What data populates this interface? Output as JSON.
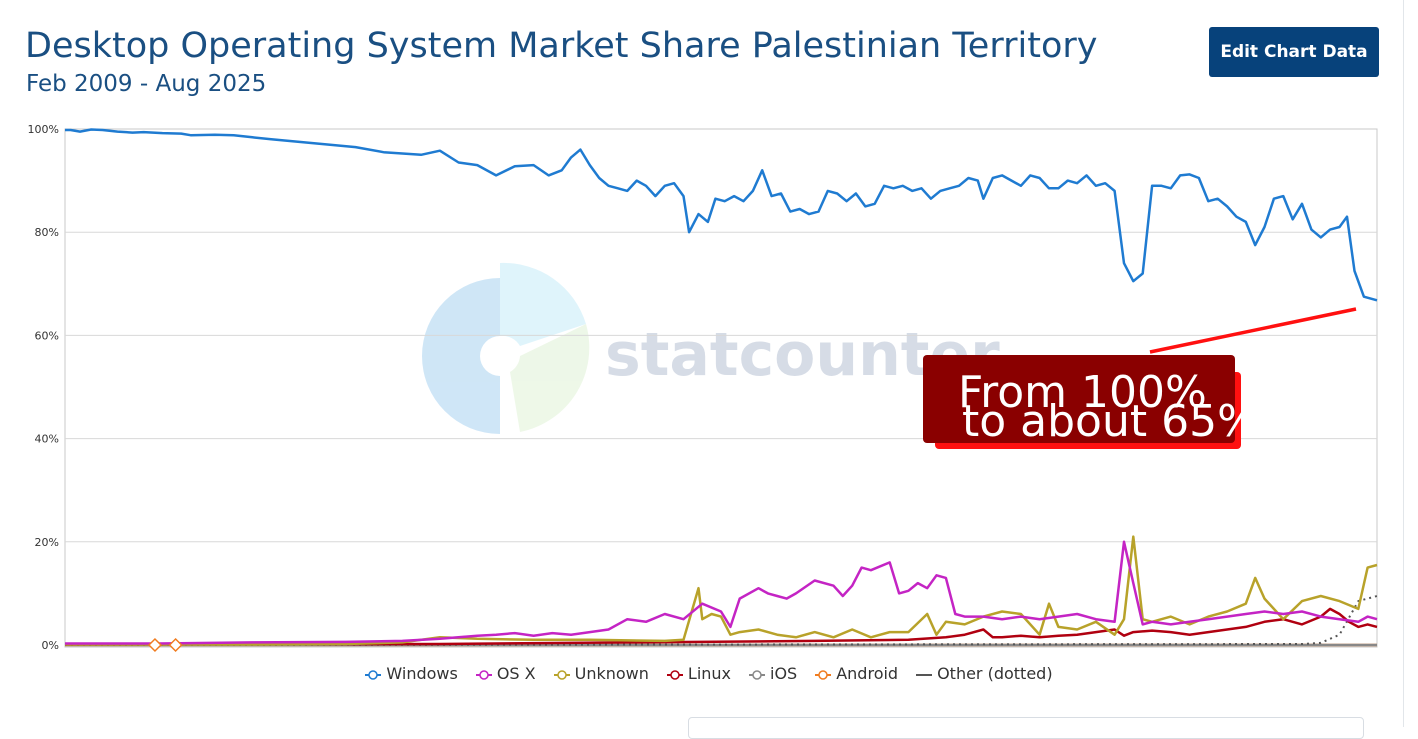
{
  "header": {
    "title": "Desktop Operating System Market Share Palestinian Territory",
    "subtitle": "Feb 2009 - Aug 2025",
    "edit_button_label": "Edit Chart Data"
  },
  "watermark": {
    "text": "statcounter"
  },
  "annotation": {
    "line1": "From 100%",
    "line2": "to about 65%"
  },
  "legend": [
    {
      "name": "Windows",
      "color": "#1f7bd1",
      "marker": "circle"
    },
    {
      "name": "OS X",
      "color": "#c424c4",
      "marker": "circle"
    },
    {
      "name": "Unknown",
      "color": "#b8a22a",
      "marker": "circle"
    },
    {
      "name": "Linux",
      "color": "#b00010",
      "marker": "circle"
    },
    {
      "name": "iOS",
      "color": "#888888",
      "marker": "circle"
    },
    {
      "name": "Android",
      "color": "#f07c20",
      "marker": "circle"
    },
    {
      "name": "Other (dotted)",
      "color": "#555555",
      "marker": "line"
    }
  ],
  "chart_data": {
    "type": "line",
    "title": "Desktop Operating System Market Share Palestinian Territory",
    "subtitle": "Feb 2009 - Aug 2025",
    "x_range": [
      "2009-02",
      "2025-08"
    ],
    "y_ticks": [
      "0%",
      "20%",
      "40%",
      "60%",
      "80%",
      "100%"
    ],
    "ylim": [
      0,
      100
    ],
    "grid": true,
    "legend_position": "bottom",
    "series": [
      {
        "name": "Windows",
        "color": "#1f7bd1",
        "points": [
          [
            0,
            99.8
          ],
          [
            0.3,
            99.8
          ],
          [
            0.8,
            99.5
          ],
          [
            1.4,
            99.9
          ],
          [
            2.0,
            99.8
          ],
          [
            2.8,
            99.5
          ],
          [
            3.6,
            99.3
          ],
          [
            4.2,
            99.4
          ],
          [
            5.2,
            99.2
          ],
          [
            6.2,
            99.1
          ],
          [
            6.7,
            98.8
          ],
          [
            8.0,
            98.9
          ],
          [
            9.0,
            98.8
          ],
          [
            10.0,
            98.4
          ],
          [
            11.0,
            98.0
          ],
          [
            12.5,
            97.5
          ],
          [
            14.0,
            97.0
          ],
          [
            15.5,
            96.5
          ],
          [
            17.0,
            95.5
          ],
          [
            19.0,
            95.0
          ],
          [
            20.0,
            95.8
          ],
          [
            21.0,
            93.5
          ],
          [
            22.0,
            93.0
          ],
          [
            23.0,
            91.0
          ],
          [
            24.0,
            92.8
          ],
          [
            25.0,
            93.0
          ],
          [
            25.8,
            91.0
          ],
          [
            26.5,
            92.0
          ],
          [
            27.0,
            94.5
          ],
          [
            27.5,
            96.0
          ],
          [
            28.0,
            93.0
          ],
          [
            28.5,
            90.5
          ],
          [
            29.0,
            89.0
          ],
          [
            29.5,
            88.5
          ],
          [
            30.0,
            88.0
          ],
          [
            30.5,
            90.0
          ],
          [
            31.0,
            89.0
          ],
          [
            31.5,
            87.0
          ],
          [
            32.0,
            89.0
          ],
          [
            32.5,
            89.5
          ],
          [
            33.0,
            87.0
          ],
          [
            33.3,
            80.0
          ],
          [
            33.8,
            83.5
          ],
          [
            34.3,
            82.0
          ],
          [
            34.7,
            86.5
          ],
          [
            35.2,
            86.0
          ],
          [
            35.7,
            87.0
          ],
          [
            36.2,
            86.0
          ],
          [
            36.7,
            88.0
          ],
          [
            37.2,
            92.0
          ],
          [
            37.7,
            87.0
          ],
          [
            38.2,
            87.5
          ],
          [
            38.7,
            84.0
          ],
          [
            39.2,
            84.5
          ],
          [
            39.7,
            83.5
          ],
          [
            40.2,
            84.0
          ],
          [
            40.7,
            88.0
          ],
          [
            41.2,
            87.5
          ],
          [
            41.7,
            86.0
          ],
          [
            42.2,
            87.5
          ],
          [
            42.7,
            85.0
          ],
          [
            43.2,
            85.5
          ],
          [
            43.7,
            89.0
          ],
          [
            44.2,
            88.5
          ],
          [
            44.7,
            89.0
          ],
          [
            45.2,
            88.0
          ],
          [
            45.7,
            88.5
          ],
          [
            46.2,
            86.5
          ],
          [
            46.7,
            88.0
          ],
          [
            47.2,
            88.5
          ],
          [
            47.7,
            89.0
          ],
          [
            48.2,
            90.5
          ],
          [
            48.7,
            90.0
          ],
          [
            49.0,
            86.5
          ],
          [
            49.5,
            90.5
          ],
          [
            50.0,
            91.0
          ],
          [
            50.5,
            90.0
          ],
          [
            51.0,
            89.0
          ],
          [
            51.5,
            91.0
          ],
          [
            52.0,
            90.5
          ],
          [
            52.5,
            88.5
          ],
          [
            53.0,
            88.5
          ],
          [
            53.5,
            90.0
          ],
          [
            54.0,
            89.5
          ],
          [
            54.5,
            91.0
          ],
          [
            55.0,
            89.0
          ],
          [
            55.5,
            89.5
          ],
          [
            56.0,
            88.0
          ],
          [
            56.5,
            74.0
          ],
          [
            57.0,
            70.5
          ],
          [
            57.5,
            72.0
          ],
          [
            58.0,
            89.0
          ],
          [
            58.5,
            89.0
          ],
          [
            59.0,
            88.5
          ],
          [
            59.5,
            91.0
          ],
          [
            60.0,
            91.2
          ],
          [
            60.5,
            90.5
          ],
          [
            61.0,
            86.0
          ],
          [
            61.5,
            86.5
          ],
          [
            62.0,
            85.0
          ],
          [
            62.5,
            83.0
          ],
          [
            63.0,
            82.0
          ],
          [
            63.5,
            77.5
          ],
          [
            64.0,
            81.0
          ],
          [
            64.5,
            86.5
          ],
          [
            65.0,
            87.0
          ],
          [
            65.5,
            82.5
          ],
          [
            66.0,
            85.5
          ],
          [
            66.5,
            80.5
          ],
          [
            67.0,
            79.0
          ],
          [
            67.5,
            80.5
          ],
          [
            68.0,
            81.0
          ],
          [
            68.4,
            83.0
          ],
          [
            68.8,
            72.5
          ],
          [
            69.3,
            67.5
          ],
          [
            70.0,
            66.8
          ]
        ]
      },
      {
        "name": "OS X",
        "color": "#c424c4",
        "points": [
          [
            0,
            0.3
          ],
          [
            5,
            0.3
          ],
          [
            10,
            0.5
          ],
          [
            15,
            0.6
          ],
          [
            18,
            0.8
          ],
          [
            20,
            1.2
          ],
          [
            22,
            1.8
          ],
          [
            23,
            2.0
          ],
          [
            24,
            2.3
          ],
          [
            25,
            1.8
          ],
          [
            26,
            2.3
          ],
          [
            27,
            2.0
          ],
          [
            28,
            2.5
          ],
          [
            29,
            3.0
          ],
          [
            30,
            5.0
          ],
          [
            31,
            4.5
          ],
          [
            32,
            6.0
          ],
          [
            33,
            5.0
          ],
          [
            34,
            8.0
          ],
          [
            35,
            6.5
          ],
          [
            35.5,
            3.5
          ],
          [
            36,
            9.0
          ],
          [
            37,
            11.0
          ],
          [
            37.5,
            10.0
          ],
          [
            38,
            9.5
          ],
          [
            38.5,
            9.0
          ],
          [
            39,
            10.0
          ],
          [
            40,
            12.5
          ],
          [
            41,
            11.5
          ],
          [
            41.5,
            9.5
          ],
          [
            42,
            11.5
          ],
          [
            42.5,
            15.0
          ],
          [
            43,
            14.5
          ],
          [
            44,
            16.0
          ],
          [
            44.5,
            10.0
          ],
          [
            45,
            10.5
          ],
          [
            45.5,
            12.0
          ],
          [
            46,
            11.0
          ],
          [
            46.5,
            13.5
          ],
          [
            47,
            13.0
          ],
          [
            47.5,
            6.0
          ],
          [
            48,
            5.5
          ],
          [
            49,
            5.5
          ],
          [
            50,
            5.0
          ],
          [
            51,
            5.5
          ],
          [
            52,
            5.0
          ],
          [
            53,
            5.5
          ],
          [
            54,
            6.0
          ],
          [
            55,
            5.0
          ],
          [
            56,
            4.5
          ],
          [
            56.5,
            20.0
          ],
          [
            57,
            12.0
          ],
          [
            57.5,
            4.0
          ],
          [
            58,
            4.5
          ],
          [
            59,
            4.0
          ],
          [
            60,
            4.5
          ],
          [
            61,
            5.0
          ],
          [
            62,
            5.5
          ],
          [
            63,
            6.0
          ],
          [
            64,
            6.5
          ],
          [
            65,
            6.0
          ],
          [
            66,
            6.5
          ],
          [
            67,
            5.5
          ],
          [
            68,
            5.0
          ],
          [
            69,
            4.5
          ],
          [
            69.5,
            5.5
          ],
          [
            70,
            5.0
          ]
        ]
      },
      {
        "name": "Unknown",
        "color": "#b8a22a",
        "points": [
          [
            0,
            0.1
          ],
          [
            10,
            0.1
          ],
          [
            15,
            0.2
          ],
          [
            18,
            0.5
          ],
          [
            20,
            1.5
          ],
          [
            22,
            1.2
          ],
          [
            25,
            1.0
          ],
          [
            28,
            1.0
          ],
          [
            32,
            0.8
          ],
          [
            33,
            1.0
          ],
          [
            33.8,
            11.0
          ],
          [
            34,
            5.0
          ],
          [
            34.5,
            6.0
          ],
          [
            35,
            5.5
          ],
          [
            35.5,
            2.0
          ],
          [
            36,
            2.5
          ],
          [
            37,
            3.0
          ],
          [
            38,
            2.0
          ],
          [
            39,
            1.5
          ],
          [
            40,
            2.5
          ],
          [
            41,
            1.5
          ],
          [
            42,
            3.0
          ],
          [
            43,
            1.5
          ],
          [
            44,
            2.5
          ],
          [
            45,
            2.5
          ],
          [
            46,
            6.0
          ],
          [
            46.5,
            2.0
          ],
          [
            47,
            4.5
          ],
          [
            48,
            4.0
          ],
          [
            49,
            5.5
          ],
          [
            50,
            6.5
          ],
          [
            51,
            6.0
          ],
          [
            52,
            2.0
          ],
          [
            52.5,
            8.0
          ],
          [
            53,
            3.5
          ],
          [
            54,
            3.0
          ],
          [
            55,
            4.5
          ],
          [
            56,
            2.0
          ],
          [
            56.5,
            5.0
          ],
          [
            57,
            21.0
          ],
          [
            57.5,
            5.0
          ],
          [
            58,
            4.5
          ],
          [
            59,
            5.5
          ],
          [
            60,
            4.0
          ],
          [
            61,
            5.5
          ],
          [
            62,
            6.5
          ],
          [
            63,
            8.0
          ],
          [
            63.5,
            13.0
          ],
          [
            64,
            9.0
          ],
          [
            65,
            5.0
          ],
          [
            66,
            8.5
          ],
          [
            67,
            9.5
          ],
          [
            68,
            8.5
          ],
          [
            69,
            7.0
          ],
          [
            69.5,
            15.0
          ],
          [
            70,
            15.5
          ]
        ]
      },
      {
        "name": "Linux",
        "color": "#b00010",
        "points": [
          [
            0,
            0.1
          ],
          [
            20,
            0.2
          ],
          [
            30,
            0.5
          ],
          [
            40,
            0.8
          ],
          [
            45,
            1.0
          ],
          [
            47,
            1.5
          ],
          [
            48,
            2.0
          ],
          [
            49,
            3.0
          ],
          [
            49.5,
            1.5
          ],
          [
            50,
            1.5
          ],
          [
            51,
            1.8
          ],
          [
            52,
            1.5
          ],
          [
            53,
            1.8
          ],
          [
            54,
            2.0
          ],
          [
            55,
            2.5
          ],
          [
            56,
            3.0
          ],
          [
            56.5,
            1.8
          ],
          [
            57,
            2.5
          ],
          [
            58,
            2.8
          ],
          [
            59,
            2.5
          ],
          [
            60,
            2.0
          ],
          [
            61,
            2.5
          ],
          [
            62,
            3.0
          ],
          [
            63,
            3.5
          ],
          [
            64,
            4.5
          ],
          [
            65,
            5.0
          ],
          [
            66,
            4.0
          ],
          [
            67,
            5.5
          ],
          [
            67.5,
            7.0
          ],
          [
            68,
            6.0
          ],
          [
            68.5,
            4.5
          ],
          [
            69,
            3.5
          ],
          [
            69.5,
            4.0
          ],
          [
            70,
            3.5
          ]
        ]
      },
      {
        "name": "iOS",
        "color": "#888888",
        "points": [
          [
            0,
            0
          ],
          [
            70,
            0
          ]
        ]
      },
      {
        "name": "Android",
        "color": "#f07c20",
        "points": [
          [
            0,
            0
          ],
          [
            70,
            0
          ]
        ]
      },
      {
        "name": "Other (dotted)",
        "color": "#555555",
        "points": [
          [
            0,
            0
          ],
          [
            66,
            0.2
          ],
          [
            67,
            0.4
          ],
          [
            68,
            2.0
          ],
          [
            69,
            8.5
          ],
          [
            70,
            9.5
          ]
        ]
      }
    ],
    "annotations": [
      {
        "text": "From 100% to about 65%",
        "points_to": [
          69.3,
          65
        ]
      }
    ]
  }
}
